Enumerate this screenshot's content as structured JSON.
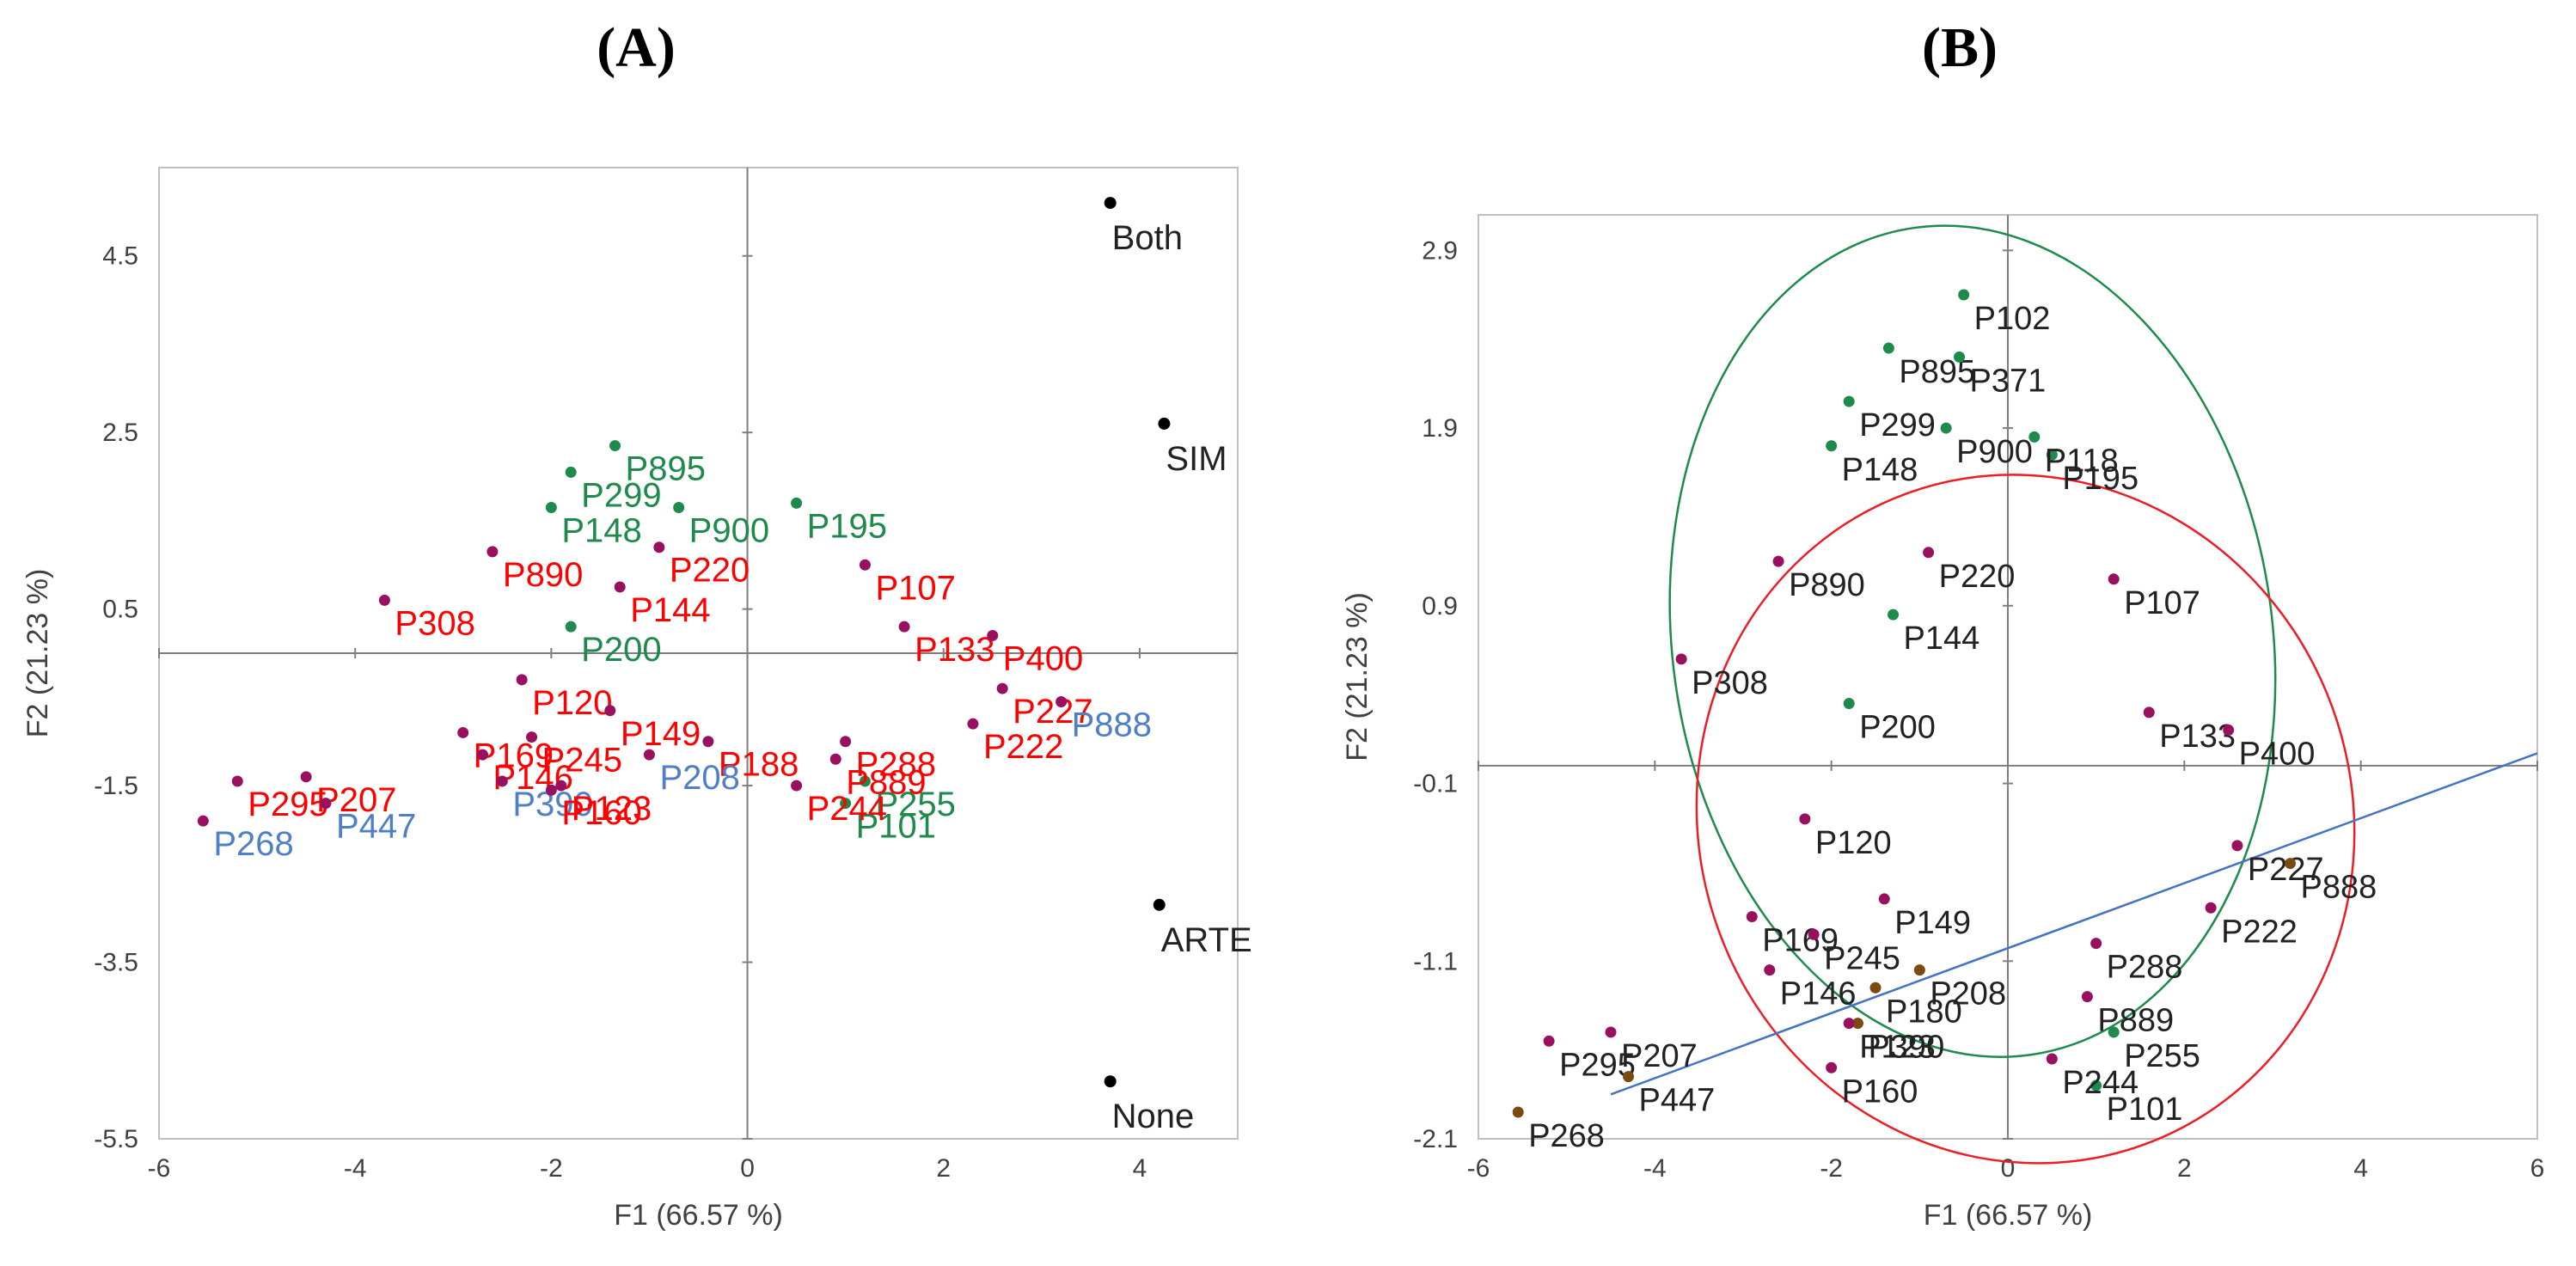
{
  "chart_data": [
    {
      "panel": "(A)",
      "type": "scatter",
      "xlabel": "F1 (66.57 %)",
      "ylabel": "F2 (21.23 %)",
      "xlim": [
        -6,
        5
      ],
      "ylim": [
        -5.5,
        5.5
      ],
      "x_ticks": [
        -6,
        -4,
        -2,
        0,
        2,
        4
      ],
      "y_ticks": [
        4.5,
        2.5,
        0.5,
        -1.5,
        -3.5,
        -5.5
      ],
      "colors": {
        "green": "#1e8a4c",
        "red": "#ff0000",
        "blue": "#4f7fc6",
        "purple": "#9a1060",
        "brown": "#7a4a10",
        "black": "#000000"
      },
      "supplementary": [
        {
          "name": "Both",
          "x": 3.7,
          "y": 5.1
        },
        {
          "name": "SIM",
          "x": 4.25,
          "y": 2.6
        },
        {
          "name": "ARTE",
          "x": 4.2,
          "y": -2.85
        },
        {
          "name": "None",
          "x": 3.7,
          "y": -4.85
        }
      ],
      "points": [
        {
          "name": "P308",
          "x": -3.7,
          "y": 0.6,
          "group": "red"
        },
        {
          "name": "P268",
          "x": -5.55,
          "y": -1.9,
          "group": "blue"
        },
        {
          "name": "P207",
          "x": -4.5,
          "y": -1.4,
          "group": "red"
        },
        {
          "name": "P295",
          "x": -5.2,
          "y": -1.45,
          "group": "red"
        },
        {
          "name": "P447",
          "x": -4.3,
          "y": -1.7,
          "group": "blue"
        },
        {
          "name": "P169",
          "x": -2.9,
          "y": -0.9,
          "group": "red"
        },
        {
          "name": "P146",
          "x": -2.7,
          "y": -1.15,
          "group": "red"
        },
        {
          "name": "P245",
          "x": -2.2,
          "y": -0.95,
          "group": "red"
        },
        {
          "name": "P390",
          "x": -2.5,
          "y": -1.45,
          "group": "blue"
        },
        {
          "name": "P123",
          "x": -1.9,
          "y": -1.5,
          "group": "red"
        },
        {
          "name": "P101",
          "x": 1.0,
          "y": -1.7,
          "group": "green"
        },
        {
          "name": "P255",
          "x": 1.2,
          "y": -1.45,
          "group": "green"
        },
        {
          "name": "P889",
          "x": 0.9,
          "y": -1.2,
          "group": "red"
        },
        {
          "name": "P895",
          "x": -1.35,
          "y": 2.35,
          "group": "green"
        },
        {
          "name": "P299",
          "x": -1.8,
          "y": 2.05,
          "group": "green"
        },
        {
          "name": "P148",
          "x": -2.0,
          "y": 1.65,
          "group": "green"
        },
        {
          "name": "P890",
          "x": -2.6,
          "y": 1.15,
          "group": "red"
        },
        {
          "name": "P200",
          "x": -1.8,
          "y": 0.3,
          "group": "green"
        },
        {
          "name": "P900",
          "x": -0.7,
          "y": 1.65,
          "group": "green"
        },
        {
          "name": "P195",
          "x": 0.5,
          "y": 1.7,
          "group": "green"
        },
        {
          "name": "P107",
          "x": 1.2,
          "y": 1.0,
          "group": "red"
        },
        {
          "name": "P220",
          "x": -0.9,
          "y": 1.2,
          "group": "red"
        },
        {
          "name": "P288",
          "x": 1.0,
          "y": -1.0,
          "group": "red"
        },
        {
          "name": "P222",
          "x": 2.3,
          "y": -0.8,
          "group": "red"
        },
        {
          "name": "P227",
          "x": 2.6,
          "y": -0.4,
          "group": "red"
        },
        {
          "name": "P888",
          "x": 3.2,
          "y": -0.55,
          "group": "blue"
        },
        {
          "name": "P144",
          "x": -1.3,
          "y": 0.75,
          "group": "red"
        },
        {
          "name": "P120",
          "x": -2.3,
          "y": -0.3,
          "group": "red"
        },
        {
          "name": "P149",
          "x": -1.4,
          "y": -0.65,
          "group": "red"
        },
        {
          "name": "P188",
          "x": -0.4,
          "y": -1.0,
          "group": "red"
        },
        {
          "name": "P160",
          "x": -2.0,
          "y": -1.55,
          "group": "red"
        },
        {
          "name": "P208",
          "x": -1.0,
          "y": -1.15,
          "group": "blue"
        },
        {
          "name": "P244",
          "x": 0.5,
          "y": -1.5,
          "group": "red"
        },
        {
          "name": "P133",
          "x": 1.6,
          "y": 0.3,
          "group": "red"
        },
        {
          "name": "P400",
          "x": 2.5,
          "y": 0.2,
          "group": "red"
        }
      ]
    },
    {
      "panel": "(B)",
      "type": "scatter",
      "xlabel": "F1 (66.57 %)",
      "ylabel": "F2 (21.23 %)",
      "xlim": [
        -6,
        6
      ],
      "ylim": [
        -2.1,
        3.1
      ],
      "x_ticks": [
        -6,
        -4,
        -2,
        0,
        2,
        4,
        6
      ],
      "y_ticks": [
        2.9,
        1.9,
        0.9,
        -0.1,
        -1.1,
        -2.1
      ],
      "regression_line": {
        "x": [
          -4.5,
          6
        ],
        "y": [
          -1.85,
          0.07
        ]
      },
      "ellipses": [
        {
          "color": "#1e8a4c",
          "cx": -0.4,
          "cy": 0.7,
          "rx": 3.4,
          "ry": 2.35,
          "rotation": -8
        },
        {
          "color": "#ee1c24",
          "cx": 0.2,
          "cy": -0.3,
          "rx": 3.7,
          "ry": 1.95,
          "rotation": -20
        }
      ],
      "points": [
        {
          "name": "P308",
          "x": -3.7,
          "y": 0.6,
          "group": "purple"
        },
        {
          "name": "P268",
          "x": -5.55,
          "y": -1.95,
          "group": "brown"
        },
        {
          "name": "P207",
          "x": -4.5,
          "y": -1.5,
          "group": "purple"
        },
        {
          "name": "P295",
          "x": -5.2,
          "y": -1.55,
          "group": "purple"
        },
        {
          "name": "P447",
          "x": -4.3,
          "y": -1.75,
          "group": "brown"
        },
        {
          "name": "P169",
          "x": -2.9,
          "y": -0.85,
          "group": "purple"
        },
        {
          "name": "P146",
          "x": -2.7,
          "y": -1.15,
          "group": "purple"
        },
        {
          "name": "P245",
          "x": -2.2,
          "y": -0.95,
          "group": "purple"
        },
        {
          "name": "P390",
          "x": -1.7,
          "y": -1.45,
          "group": "brown"
        },
        {
          "name": "P123",
          "x": -1.8,
          "y": -1.45,
          "group": "purple"
        },
        {
          "name": "P101",
          "x": 1.0,
          "y": -1.8,
          "group": "green"
        },
        {
          "name": "P255",
          "x": 1.2,
          "y": -1.5,
          "group": "green"
        },
        {
          "name": "P889",
          "x": 0.9,
          "y": -1.3,
          "group": "purple"
        },
        {
          "name": "P895",
          "x": -1.35,
          "y": 2.35,
          "group": "green"
        },
        {
          "name": "P371",
          "x": -0.55,
          "y": 2.3,
          "group": "green"
        },
        {
          "name": "P299",
          "x": -1.8,
          "y": 2.05,
          "group": "green"
        },
        {
          "name": "P148",
          "x": -2.0,
          "y": 1.8,
          "group": "green"
        },
        {
          "name": "P890",
          "x": -2.6,
          "y": 1.15,
          "group": "purple"
        },
        {
          "name": "P200",
          "x": -1.8,
          "y": 0.35,
          "group": "green"
        },
        {
          "name": "P900",
          "x": -0.7,
          "y": 1.9,
          "group": "green"
        },
        {
          "name": "P195",
          "x": 0.5,
          "y": 1.75,
          "group": "green"
        },
        {
          "name": "P107",
          "x": 1.2,
          "y": 1.05,
          "group": "purple"
        },
        {
          "name": "P220",
          "x": -0.9,
          "y": 1.2,
          "group": "purple"
        },
        {
          "name": "P288",
          "x": 1.0,
          "y": -1.0,
          "group": "purple"
        },
        {
          "name": "P222",
          "x": 2.3,
          "y": -0.8,
          "group": "purple"
        },
        {
          "name": "P227",
          "x": 2.6,
          "y": -0.45,
          "group": "purple"
        },
        {
          "name": "P888",
          "x": 3.2,
          "y": -0.55,
          "group": "brown"
        },
        {
          "name": "P144",
          "x": -1.3,
          "y": 0.85,
          "group": "green"
        },
        {
          "name": "P149",
          "x": -1.4,
          "y": -0.75,
          "group": "purple"
        },
        {
          "name": "P180",
          "x": -1.5,
          "y": -1.25,
          "group": "brown"
        },
        {
          "name": "P208",
          "x": -1.0,
          "y": -1.15,
          "group": "brown"
        },
        {
          "name": "P244",
          "x": 0.5,
          "y": -1.65,
          "group": "purple"
        },
        {
          "name": "P160",
          "x": -2.0,
          "y": -1.7,
          "group": "purple"
        },
        {
          "name": "P133",
          "x": 1.6,
          "y": 0.3,
          "group": "purple"
        },
        {
          "name": "P400",
          "x": 2.5,
          "y": 0.2,
          "group": "purple"
        },
        {
          "name": "P120",
          "x": -2.3,
          "y": -0.3,
          "group": "purple"
        },
        {
          "name": "P118",
          "x": 0.3,
          "y": 1.85,
          "group": "green"
        },
        {
          "name": "P102",
          "x": -0.5,
          "y": 2.65,
          "group": "green"
        }
      ]
    }
  ],
  "titles": {
    "a": "(A)",
    "b": "(B)"
  }
}
